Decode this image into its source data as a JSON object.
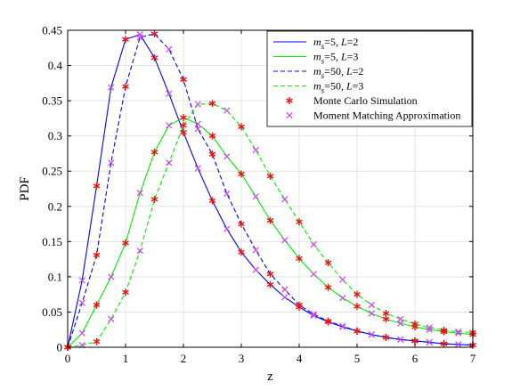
{
  "chart_data": {
    "type": "line",
    "title": "",
    "xlabel": "z",
    "ylabel": "PDF",
    "xlim": [
      0,
      7
    ],
    "ylim": [
      0,
      0.45
    ],
    "x_ticks": [
      0,
      1,
      2,
      3,
      4,
      5,
      6,
      7
    ],
    "y_ticks": [
      0,
      0.05,
      0.1,
      0.15,
      0.2,
      0.25,
      0.3,
      0.35,
      0.4,
      0.45
    ],
    "x_tick_labels": [
      "0",
      "1",
      "2",
      "3",
      "4",
      "5",
      "6",
      "7"
    ],
    "y_tick_labels": [
      "0",
      "0.05",
      "0.1",
      "0.15",
      "0.2",
      "0.25",
      "0.3",
      "0.35",
      "0.4",
      "0.45"
    ],
    "grid": true,
    "legend_position": "top-right",
    "x": [
      0,
      0.25,
      0.5,
      0.75,
      1.0,
      1.25,
      1.5,
      1.75,
      2.0,
      2.25,
      2.5,
      2.75,
      3.0,
      3.25,
      3.5,
      3.75,
      4.0,
      4.25,
      4.5,
      4.75,
      5.0,
      5.25,
      5.5,
      5.75,
      6.0,
      6.25,
      6.5,
      6.75,
      7.0
    ],
    "series": [
      {
        "name": "m_s=5, L=2",
        "label_main": "m",
        "label_sub": "s",
        "label_rest": "=5, ",
        "label_italic": "L",
        "label_end": "=2",
        "color": "#0000ff",
        "dash": "solid",
        "values": [
          0,
          0.095,
          0.229,
          0.369,
          0.437,
          0.444,
          0.411,
          0.36,
          0.305,
          0.254,
          0.208,
          0.168,
          0.135,
          0.11,
          0.089,
          0.071,
          0.057,
          0.045,
          0.036,
          0.029,
          0.023,
          0.018,
          0.014,
          0.011,
          0.009,
          0.007,
          0.005,
          0.004,
          0.003
        ]
      },
      {
        "name": "m_s=5, L=3",
        "label_main": "m",
        "label_sub": "s",
        "label_rest": "=5, ",
        "label_italic": "L",
        "label_end": "=3",
        "color": "#00ee00",
        "dash": "solid",
        "values": [
          0,
          0.02,
          0.06,
          0.1,
          0.148,
          0.219,
          0.277,
          0.315,
          0.326,
          0.317,
          0.3,
          0.271,
          0.246,
          0.214,
          0.18,
          0.152,
          0.126,
          0.104,
          0.085,
          0.07,
          0.058,
          0.048,
          0.04,
          0.034,
          0.029,
          0.025,
          0.022,
          0.02,
          0.018
        ]
      },
      {
        "name": "m_s=50, L=2",
        "label_main": "m",
        "label_sub": "s",
        "label_rest": "=50, ",
        "label_italic": "L",
        "label_end": "=2",
        "color": "#0000ff",
        "dash": "dashed",
        "values": [
          0,
          0.063,
          0.131,
          0.262,
          0.37,
          0.44,
          0.445,
          0.423,
          0.38,
          0.31,
          0.274,
          0.218,
          0.175,
          0.138,
          0.104,
          0.082,
          0.06,
          0.047,
          0.037,
          0.03,
          0.023,
          0.018,
          0.014,
          0.011,
          0.009,
          0.007,
          0.005,
          0.004,
          0.003
        ]
      },
      {
        "name": "m_s=50, L=3",
        "label_main": "m",
        "label_sub": "s",
        "label_rest": "=50, ",
        "label_italic": "L",
        "label_end": "=3",
        "color": "#00ee00",
        "dash": "dashed",
        "values": [
          0,
          0.003,
          0.008,
          0.04,
          0.078,
          0.137,
          0.21,
          0.262,
          0.315,
          0.345,
          0.346,
          0.336,
          0.313,
          0.28,
          0.243,
          0.21,
          0.178,
          0.146,
          0.12,
          0.096,
          0.075,
          0.06,
          0.048,
          0.04,
          0.033,
          0.028,
          0.024,
          0.022,
          0.021
        ]
      }
    ],
    "markers": [
      {
        "name": "Monte Carlo Simulation",
        "symbol": "asterisk",
        "color": "#ee1111"
      },
      {
        "name": "Moment Matching Approximation",
        "symbol": "x",
        "color": "#cc44ee"
      }
    ]
  }
}
